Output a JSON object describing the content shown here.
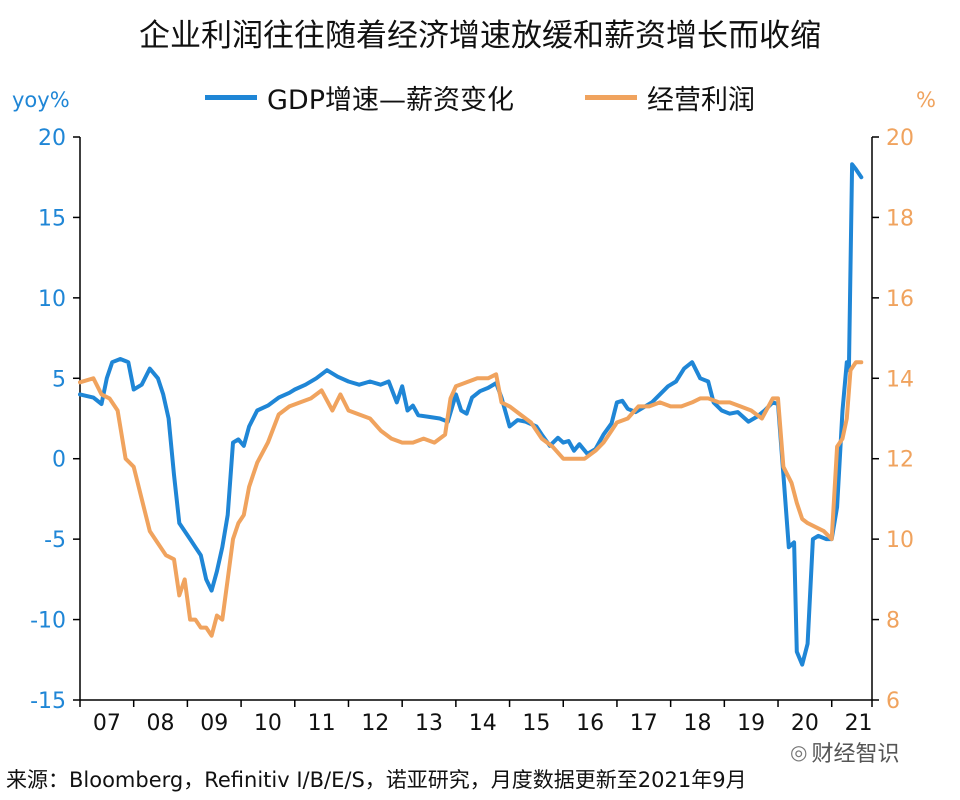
{
  "title": "企业利润往往随着经济增速放缓和薪资增长而收缩",
  "source": "来源：Bloomberg，Refinitiv I/B/E/S，诺亚研究，月度数据更新至2021年9月",
  "watermark": "财经智识",
  "colors": {
    "gdp_wage": "#1f86d6",
    "profit": "#f0a35e",
    "axis": "#000000"
  },
  "chart_data": {
    "type": "line",
    "left_unit": "yoy%",
    "right_unit": "%",
    "x_tick_labels": [
      "07",
      "08",
      "09",
      "10",
      "11",
      "12",
      "13",
      "14",
      "15",
      "16",
      "17",
      "18",
      "19",
      "20",
      "21"
    ],
    "x_range": [
      2007.0,
      2021.75
    ],
    "y_left": {
      "ylim": [
        -15,
        20
      ],
      "ticks": [
        -15,
        -10,
        -5,
        0,
        5,
        10,
        15,
        20
      ]
    },
    "y_right": {
      "ylim": [
        6,
        20
      ],
      "ticks": [
        6,
        8,
        10,
        12,
        14,
        16,
        18,
        20
      ]
    },
    "grid": false,
    "legend_position": "top-center",
    "series": [
      {
        "name": "GDP增速—薪资变化",
        "axis": "left",
        "color": "#1f86d6",
        "points": [
          [
            2007.0,
            4.0
          ],
          [
            2007.25,
            3.8
          ],
          [
            2007.4,
            3.4
          ],
          [
            2007.5,
            5.0
          ],
          [
            2007.6,
            6.0
          ],
          [
            2007.75,
            6.2
          ],
          [
            2007.9,
            6.0
          ],
          [
            2008.0,
            4.3
          ],
          [
            2008.15,
            4.6
          ],
          [
            2008.3,
            5.6
          ],
          [
            2008.45,
            5.0
          ],
          [
            2008.55,
            4.0
          ],
          [
            2008.65,
            2.5
          ],
          [
            2008.75,
            -1.0
          ],
          [
            2008.85,
            -4.0
          ],
          [
            2008.95,
            -4.5
          ],
          [
            2009.05,
            -5.0
          ],
          [
            2009.15,
            -5.5
          ],
          [
            2009.25,
            -6.0
          ],
          [
            2009.35,
            -7.5
          ],
          [
            2009.45,
            -8.2
          ],
          [
            2009.55,
            -7.0
          ],
          [
            2009.65,
            -5.5
          ],
          [
            2009.75,
            -3.5
          ],
          [
            2009.85,
            1.0
          ],
          [
            2009.95,
            1.2
          ],
          [
            2010.05,
            0.8
          ],
          [
            2010.15,
            2.0
          ],
          [
            2010.3,
            3.0
          ],
          [
            2010.5,
            3.3
          ],
          [
            2010.7,
            3.8
          ],
          [
            2010.9,
            4.1
          ],
          [
            2011.0,
            4.3
          ],
          [
            2011.2,
            4.6
          ],
          [
            2011.4,
            5.0
          ],
          [
            2011.6,
            5.5
          ],
          [
            2011.8,
            5.1
          ],
          [
            2012.0,
            4.8
          ],
          [
            2012.2,
            4.6
          ],
          [
            2012.4,
            4.8
          ],
          [
            2012.6,
            4.6
          ],
          [
            2012.75,
            4.8
          ],
          [
            2012.9,
            3.5
          ],
          [
            2013.0,
            4.5
          ],
          [
            2013.1,
            3.0
          ],
          [
            2013.2,
            3.3
          ],
          [
            2013.3,
            2.7
          ],
          [
            2013.5,
            2.6
          ],
          [
            2013.7,
            2.5
          ],
          [
            2013.85,
            2.3
          ],
          [
            2014.0,
            4.0
          ],
          [
            2014.1,
            3.0
          ],
          [
            2014.2,
            2.8
          ],
          [
            2014.3,
            3.8
          ],
          [
            2014.45,
            4.2
          ],
          [
            2014.6,
            4.4
          ],
          [
            2014.75,
            4.7
          ],
          [
            2014.85,
            3.8
          ],
          [
            2015.0,
            2.0
          ],
          [
            2015.15,
            2.4
          ],
          [
            2015.3,
            2.3
          ],
          [
            2015.5,
            2.0
          ],
          [
            2015.6,
            1.5
          ],
          [
            2015.75,
            0.8
          ],
          [
            2015.9,
            1.3
          ],
          [
            2016.0,
            1.0
          ],
          [
            2016.1,
            1.1
          ],
          [
            2016.2,
            0.5
          ],
          [
            2016.3,
            0.9
          ],
          [
            2016.45,
            0.3
          ],
          [
            2016.6,
            0.6
          ],
          [
            2016.75,
            1.5
          ],
          [
            2016.9,
            2.2
          ],
          [
            2017.0,
            3.5
          ],
          [
            2017.1,
            3.6
          ],
          [
            2017.2,
            3.1
          ],
          [
            2017.35,
            2.9
          ],
          [
            2017.5,
            3.2
          ],
          [
            2017.65,
            3.5
          ],
          [
            2017.8,
            4.0
          ],
          [
            2017.95,
            4.5
          ],
          [
            2018.1,
            4.8
          ],
          [
            2018.25,
            5.6
          ],
          [
            2018.4,
            6.0
          ],
          [
            2018.55,
            5.0
          ],
          [
            2018.7,
            4.8
          ],
          [
            2018.8,
            3.5
          ],
          [
            2018.95,
            3.0
          ],
          [
            2019.1,
            2.8
          ],
          [
            2019.25,
            2.9
          ],
          [
            2019.35,
            2.6
          ],
          [
            2019.45,
            2.3
          ],
          [
            2019.6,
            2.6
          ],
          [
            2019.75,
            3.0
          ],
          [
            2019.9,
            3.5
          ],
          [
            2020.0,
            3.4
          ],
          [
            2020.1,
            -1.0
          ],
          [
            2020.2,
            -5.5
          ],
          [
            2020.3,
            -5.2
          ],
          [
            2020.35,
            -12.0
          ],
          [
            2020.45,
            -12.8
          ],
          [
            2020.55,
            -11.5
          ],
          [
            2020.65,
            -5.0
          ],
          [
            2020.75,
            -4.8
          ],
          [
            2020.9,
            -5.0
          ],
          [
            2021.0,
            -5.0
          ],
          [
            2021.1,
            -3.0
          ],
          [
            2021.2,
            3.0
          ],
          [
            2021.28,
            6.0
          ],
          [
            2021.32,
            5.5
          ],
          [
            2021.38,
            18.3
          ],
          [
            2021.45,
            18.0
          ],
          [
            2021.55,
            17.5
          ]
        ]
      },
      {
        "name": "经营利润",
        "axis": "right",
        "color": "#f0a35e",
        "points": [
          [
            2007.0,
            13.9
          ],
          [
            2007.25,
            14.0
          ],
          [
            2007.4,
            13.6
          ],
          [
            2007.55,
            13.5
          ],
          [
            2007.7,
            13.2
          ],
          [
            2007.85,
            12.0
          ],
          [
            2008.0,
            11.8
          ],
          [
            2008.15,
            11.0
          ],
          [
            2008.3,
            10.2
          ],
          [
            2008.45,
            9.9
          ],
          [
            2008.6,
            9.6
          ],
          [
            2008.75,
            9.5
          ],
          [
            2008.85,
            8.6
          ],
          [
            2008.95,
            9.0
          ],
          [
            2009.05,
            8.0
          ],
          [
            2009.15,
            8.0
          ],
          [
            2009.25,
            7.8
          ],
          [
            2009.35,
            7.8
          ],
          [
            2009.45,
            7.6
          ],
          [
            2009.55,
            8.1
          ],
          [
            2009.65,
            8.0
          ],
          [
            2009.75,
            9.0
          ],
          [
            2009.85,
            10.0
          ],
          [
            2009.95,
            10.4
          ],
          [
            2010.05,
            10.6
          ],
          [
            2010.15,
            11.3
          ],
          [
            2010.3,
            11.9
          ],
          [
            2010.5,
            12.4
          ],
          [
            2010.7,
            13.1
          ],
          [
            2010.9,
            13.3
          ],
          [
            2011.1,
            13.4
          ],
          [
            2011.3,
            13.5
          ],
          [
            2011.5,
            13.7
          ],
          [
            2011.7,
            13.2
          ],
          [
            2011.85,
            13.6
          ],
          [
            2012.0,
            13.2
          ],
          [
            2012.2,
            13.1
          ],
          [
            2012.4,
            13.0
          ],
          [
            2012.6,
            12.7
          ],
          [
            2012.8,
            12.5
          ],
          [
            2013.0,
            12.4
          ],
          [
            2013.2,
            12.4
          ],
          [
            2013.4,
            12.5
          ],
          [
            2013.6,
            12.4
          ],
          [
            2013.8,
            12.6
          ],
          [
            2013.9,
            13.5
          ],
          [
            2014.0,
            13.8
          ],
          [
            2014.2,
            13.9
          ],
          [
            2014.4,
            14.0
          ],
          [
            2014.6,
            14.0
          ],
          [
            2014.75,
            14.1
          ],
          [
            2014.85,
            13.4
          ],
          [
            2015.0,
            13.3
          ],
          [
            2015.2,
            13.1
          ],
          [
            2015.4,
            12.9
          ],
          [
            2015.6,
            12.5
          ],
          [
            2015.8,
            12.3
          ],
          [
            2016.0,
            12.0
          ],
          [
            2016.2,
            12.0
          ],
          [
            2016.4,
            12.0
          ],
          [
            2016.6,
            12.2
          ],
          [
            2016.75,
            12.4
          ],
          [
            2016.9,
            12.7
          ],
          [
            2017.0,
            12.9
          ],
          [
            2017.2,
            13.0
          ],
          [
            2017.4,
            13.3
          ],
          [
            2017.6,
            13.3
          ],
          [
            2017.8,
            13.4
          ],
          [
            2018.0,
            13.3
          ],
          [
            2018.2,
            13.3
          ],
          [
            2018.4,
            13.4
          ],
          [
            2018.55,
            13.5
          ],
          [
            2018.7,
            13.5
          ],
          [
            2018.9,
            13.4
          ],
          [
            2019.1,
            13.4
          ],
          [
            2019.3,
            13.3
          ],
          [
            2019.5,
            13.2
          ],
          [
            2019.7,
            13.0
          ],
          [
            2019.9,
            13.5
          ],
          [
            2020.0,
            13.5
          ],
          [
            2020.1,
            11.8
          ],
          [
            2020.25,
            11.4
          ],
          [
            2020.35,
            10.9
          ],
          [
            2020.45,
            10.5
          ],
          [
            2020.55,
            10.4
          ],
          [
            2020.7,
            10.3
          ],
          [
            2020.85,
            10.2
          ],
          [
            2021.0,
            10.0
          ],
          [
            2021.1,
            12.3
          ],
          [
            2021.2,
            12.5
          ],
          [
            2021.28,
            13.0
          ],
          [
            2021.35,
            14.2
          ],
          [
            2021.45,
            14.4
          ],
          [
            2021.55,
            14.4
          ]
        ]
      }
    ]
  }
}
